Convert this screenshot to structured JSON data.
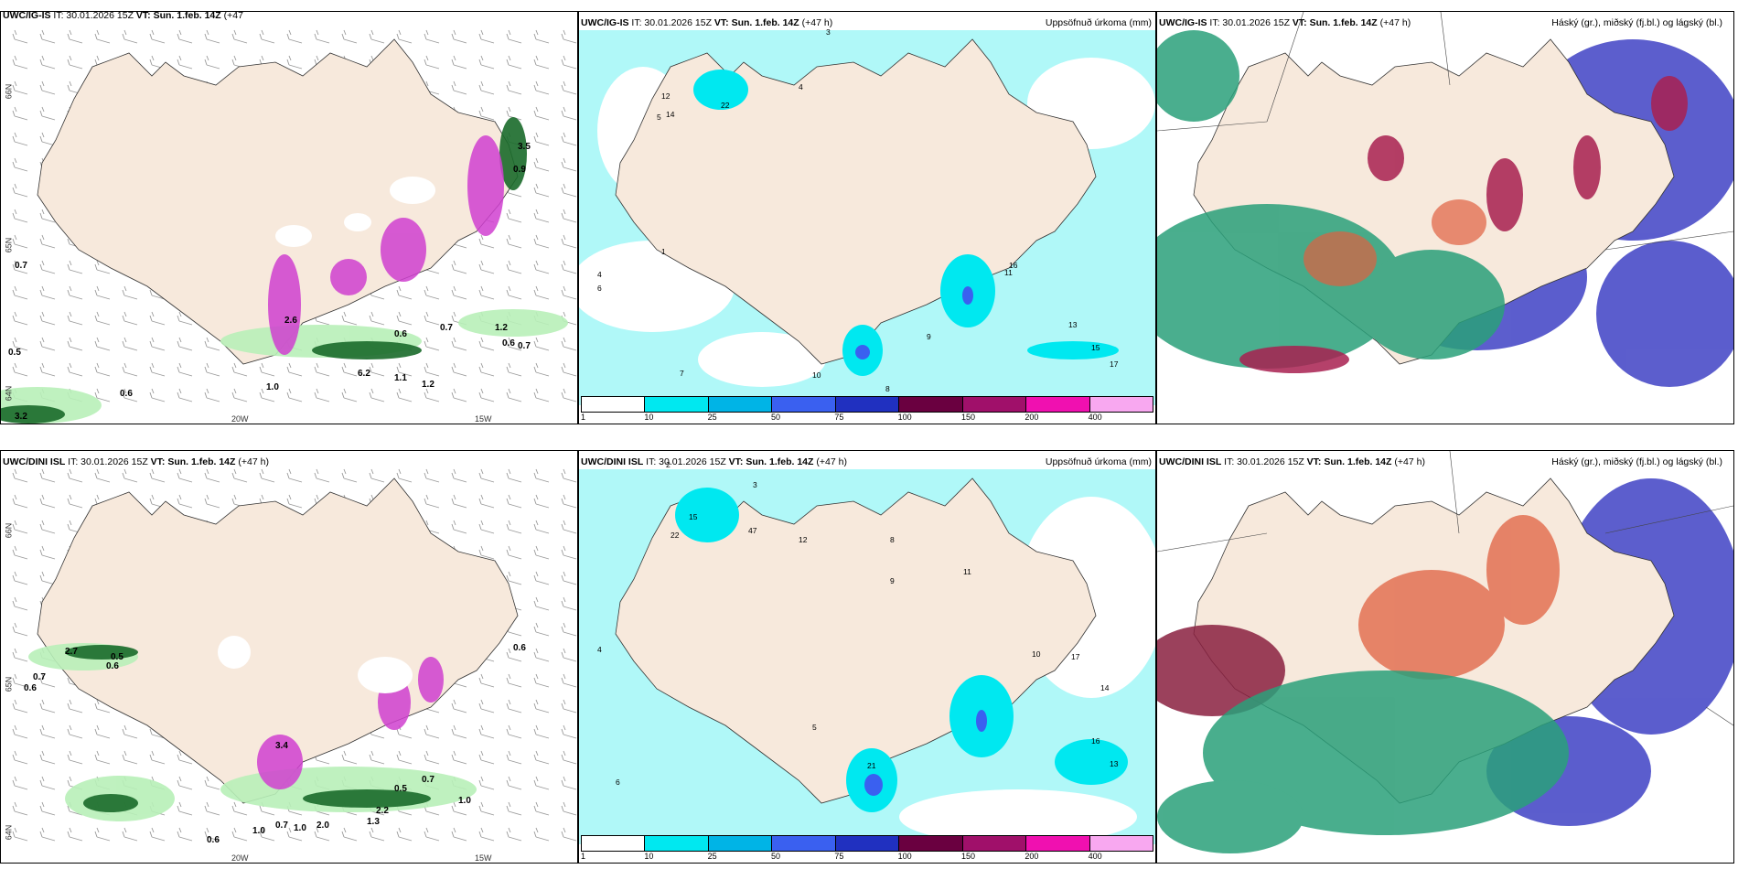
{
  "rows": [
    {
      "wind_panel": {
        "title_model": "UWC/IG-IS",
        "title_it": "IT: 30.01.2026 15Z",
        "title_vt": "VT: Sun. 1.feb. 14Z",
        "title_lead": "(+47"
      },
      "precip_panel": {
        "title_model": "UWC/IG-IS",
        "title_it": "IT: 30.01.2026 15Z",
        "title_vt": "VT: Sun. 1.feb. 14Z",
        "title_lead": "(+47 h)",
        "right_label": "Uppsöfnuð úrkoma (mm)"
      },
      "cloud_panel": {
        "title_model": "UWC/IG-IS",
        "title_it": "IT: 30.01.2026 15Z",
        "title_vt": "VT: Sun. 1.feb. 14Z",
        "title_lead": "(+47 h)",
        "right_label": "Háský (gr.), miðský (fj.bl.) og lágský (bl.)"
      }
    },
    {
      "wind_panel": {
        "title_model": "UWC/DINI ISL",
        "title_it": "IT: 30.01.2026 15Z",
        "title_vt": "VT: Sun. 1.feb. 14Z",
        "title_lead": "(+47 h)"
      },
      "precip_panel": {
        "title_model": "UWC/DINI ISL",
        "title_it": "IT: 30.01.2026 15Z",
        "title_vt": "VT: Sun. 1.feb. 14Z",
        "title_lead": "(+47 h)",
        "right_label": "Uppsöfnuð úrkoma (mm)"
      },
      "cloud_panel": {
        "title_model": "UWC/DINI ISL",
        "title_it": "IT: 30.01.2026 15Z",
        "title_vt": "VT: Sun. 1.feb. 14Z",
        "title_lead": "(+47 h)",
        "right_label": "Háský (gr.), miðský (fj.bl.) og lágský (bl.)"
      }
    }
  ],
  "wind_axis": {
    "lon_20": "20W",
    "lon_15": "15W",
    "lat_66": "66N",
    "lat_65": "65N",
    "lat_64": "64N"
  },
  "colorbar": {
    "ticks": [
      "1",
      "10",
      "25",
      "50",
      "75",
      "100",
      "150",
      "200",
      "400"
    ],
    "colors": [
      "#ffffff",
      "#00e8f0",
      "#00b4e6",
      "#3a60f0",
      "#2030c0",
      "#6a0040",
      "#a0106a",
      "#f010b0",
      "#f8a8f0"
    ]
  },
  "palette": {
    "land": "#f7e9dc",
    "light_cyan": "#b0f8f8",
    "cyan": "#00e8f0",
    "cloud_low": "#4a4cc8",
    "cloud_mid": "#2aa07a",
    "cloud_high": "#a82050"
  },
  "wind_values_top": [
    "0.7",
    "0.5",
    "0.6",
    "3.2",
    "1.0",
    "6.2",
    "0.6",
    "0.7",
    "1.2",
    "0.6",
    "0.7",
    "1.1",
    "1.2",
    "2.6",
    "0.9",
    "3.5"
  ],
  "wind_values_bottom": [
    "2.7",
    "0.6",
    "0.5",
    "0.7",
    "0.6",
    "0.6",
    "3.4",
    "0.7",
    "0.5",
    "1.0",
    "0.7",
    "2.0",
    "1.0",
    "2.2",
    "0.6",
    "1.3",
    "1.0"
  ],
  "precip_values_top": [
    "3",
    "5",
    "4",
    "12",
    "14",
    "22",
    "7",
    "4",
    "6",
    "1",
    "10",
    "9",
    "11",
    "13",
    "15",
    "17",
    "16",
    "8"
  ],
  "precip_values_bottom": [
    "2",
    "4",
    "15",
    "22",
    "47",
    "3",
    "12",
    "8",
    "9",
    "11",
    "17",
    "14",
    "13",
    "21",
    "5",
    "10",
    "6",
    "16"
  ]
}
